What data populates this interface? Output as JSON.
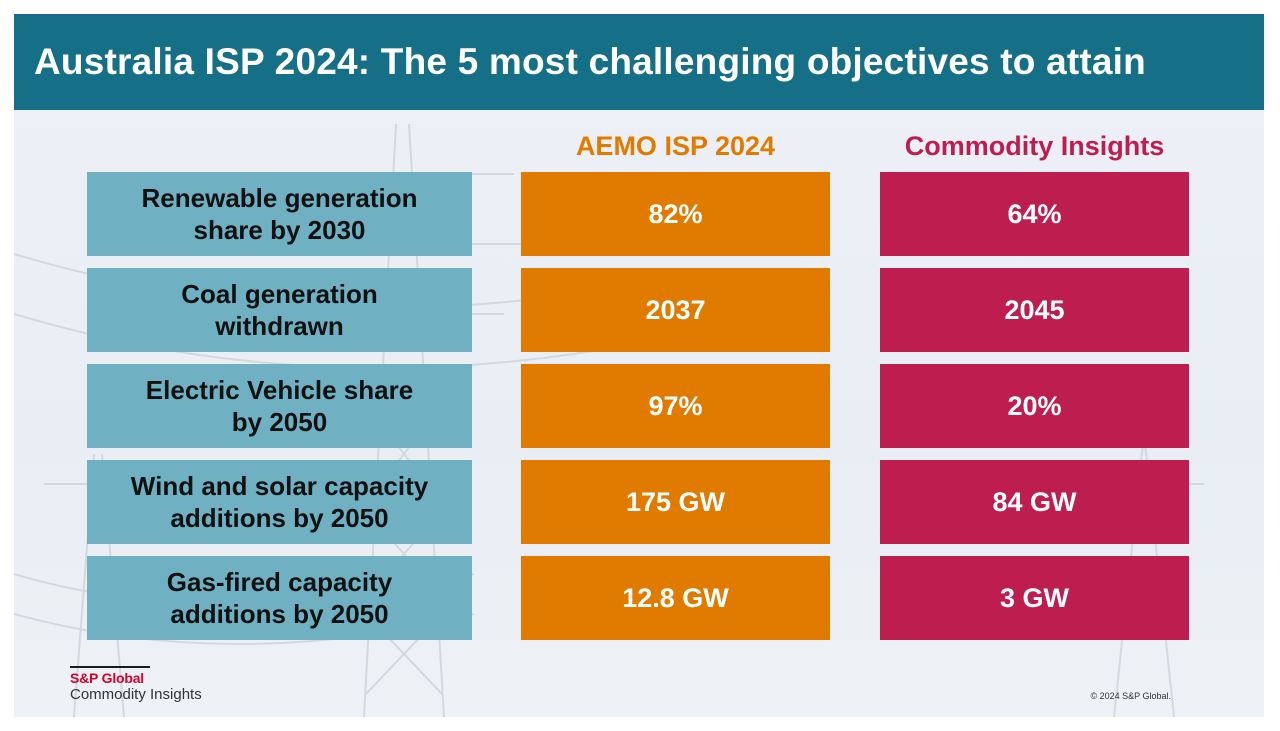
{
  "title": "Australia ISP 2024: The 5 most challenging objectives to attain",
  "columns": {
    "aemo": "AEMO ISP 2024",
    "ci": "Commodity Insights"
  },
  "rows": [
    {
      "label_lines": [
        "Renewable generation",
        "share by 2030"
      ],
      "aemo": "82%",
      "ci": "64%"
    },
    {
      "label_lines": [
        "Coal generation",
        "withdrawn"
      ],
      "aemo": "2037",
      "ci": "2045"
    },
    {
      "label_lines": [
        "Electric Vehicle share",
        "by 2050"
      ],
      "aemo": "97%",
      "ci": "20%"
    },
    {
      "label_lines": [
        "Wind and solar capacity",
        "additions by 2050"
      ],
      "aemo": "175 GW",
      "ci": "84 GW"
    },
    {
      "label_lines": [
        "Gas-fired capacity",
        "additions by 2050"
      ],
      "aemo": "12.8 GW",
      "ci": "3 GW"
    }
  ],
  "footer": {
    "brand": "S&P Global",
    "sub": "Commodity Insights",
    "copyright": "© 2024 S&P Global."
  },
  "colors": {
    "title_bar": "#156f86",
    "label_bg": "#6fb1c3",
    "aemo": "#e07b00",
    "ci": "#be1e4f"
  }
}
